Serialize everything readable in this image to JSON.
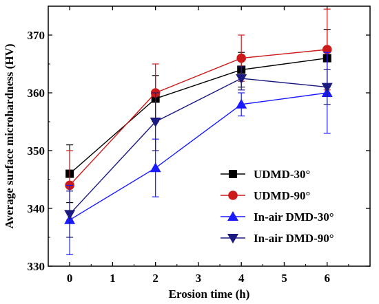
{
  "chart_data": {
    "type": "line",
    "title": "",
    "xlabel": "Erosion time (h)",
    "ylabel": "Average surface microhardness (HV)",
    "xlim": [
      -0.5,
      7
    ],
    "ylim": [
      330,
      375
    ],
    "xticks": [
      0,
      1,
      2,
      3,
      4,
      5,
      6
    ],
    "yticks": [
      330,
      340,
      350,
      360,
      370
    ],
    "legend_position": "center-right",
    "grid": false,
    "x": [
      0,
      2,
      4,
      6
    ],
    "series": [
      {
        "name": "UDMD-30°",
        "color": "#000000",
        "marker": "square",
        "values": [
          346,
          359,
          364,
          366
        ],
        "errors": [
          5,
          4,
          3,
          5
        ]
      },
      {
        "name": "UDMD-90°",
        "color": "#cc1a1a",
        "marker": "circle",
        "values": [
          344,
          360,
          366,
          367.5
        ],
        "errors": [
          6,
          5,
          4,
          7
        ]
      },
      {
        "name": "In-air DMD-30°",
        "color": "#1a1aff",
        "marker": "triangle-up",
        "values": [
          338,
          347,
          358,
          360
        ],
        "errors": [
          6,
          5,
          2,
          7
        ]
      },
      {
        "name": "In-air DMD-90°",
        "color": "#1a1a80",
        "marker": "triangle-down",
        "values": [
          339,
          355,
          362.5,
          361
        ],
        "errors": [
          4,
          5,
          2,
          3
        ]
      }
    ]
  }
}
